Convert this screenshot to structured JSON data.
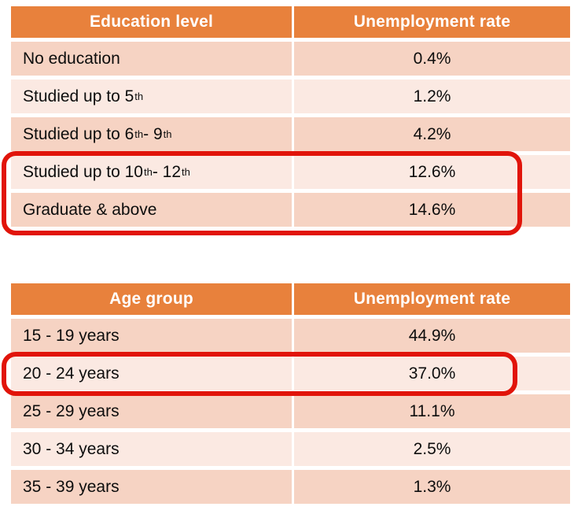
{
  "colors": {
    "header_bg": "#e8813c",
    "header_text": "#ffffff",
    "row_dark_bg": "#f6d3c3",
    "row_light_bg": "#fbe9e2",
    "cell_text": "#0d0d0d",
    "highlight_border": "#e1140a",
    "page_bg": "#ffffff"
  },
  "tables": [
    {
      "name": "education",
      "headers": [
        "Education level",
        "Unemployment rate"
      ],
      "rows": [
        {
          "label": {
            "pre": "No education"
          },
          "value": "0.4%"
        },
        {
          "label": {
            "pre": "Studied up to 5",
            "sup_a": "th"
          },
          "value": "1.2%"
        },
        {
          "label": {
            "pre": "Studied up to 6",
            "sup_a": "th",
            "mid": " - 9",
            "sup_b": "th"
          },
          "value": "4.2%"
        },
        {
          "label": {
            "pre": "Studied up to 10",
            "sup_a": "th",
            "mid": " - 12",
            "sup_b": "th"
          },
          "value": "12.6%",
          "highlighted": true
        },
        {
          "label": {
            "pre": "Graduate & above"
          },
          "value": "14.6%",
          "highlighted": true
        }
      ]
    },
    {
      "name": "age",
      "headers": [
        "Age group",
        "Unemployment rate"
      ],
      "rows": [
        {
          "label": {
            "pre": "15 - 19 years"
          },
          "value": "44.9%"
        },
        {
          "label": {
            "pre": "20 - 24 years"
          },
          "value": "37.0%",
          "highlighted": true
        },
        {
          "label": {
            "pre": "25 - 29 years"
          },
          "value": "11.1%"
        },
        {
          "label": {
            "pre": "30 - 34 years"
          },
          "value": "2.5%"
        },
        {
          "label": {
            "pre": "35 - 39 years"
          },
          "value": "1.3%"
        }
      ]
    }
  ],
  "annotations": [
    {
      "name": "education-highlight-box",
      "encloses": "Studied up to 10th - 12th (12.6%) and Graduate & above (14.6%)"
    },
    {
      "name": "age-highlight-box",
      "encloses": "20 - 24 years (37.0%)"
    }
  ]
}
